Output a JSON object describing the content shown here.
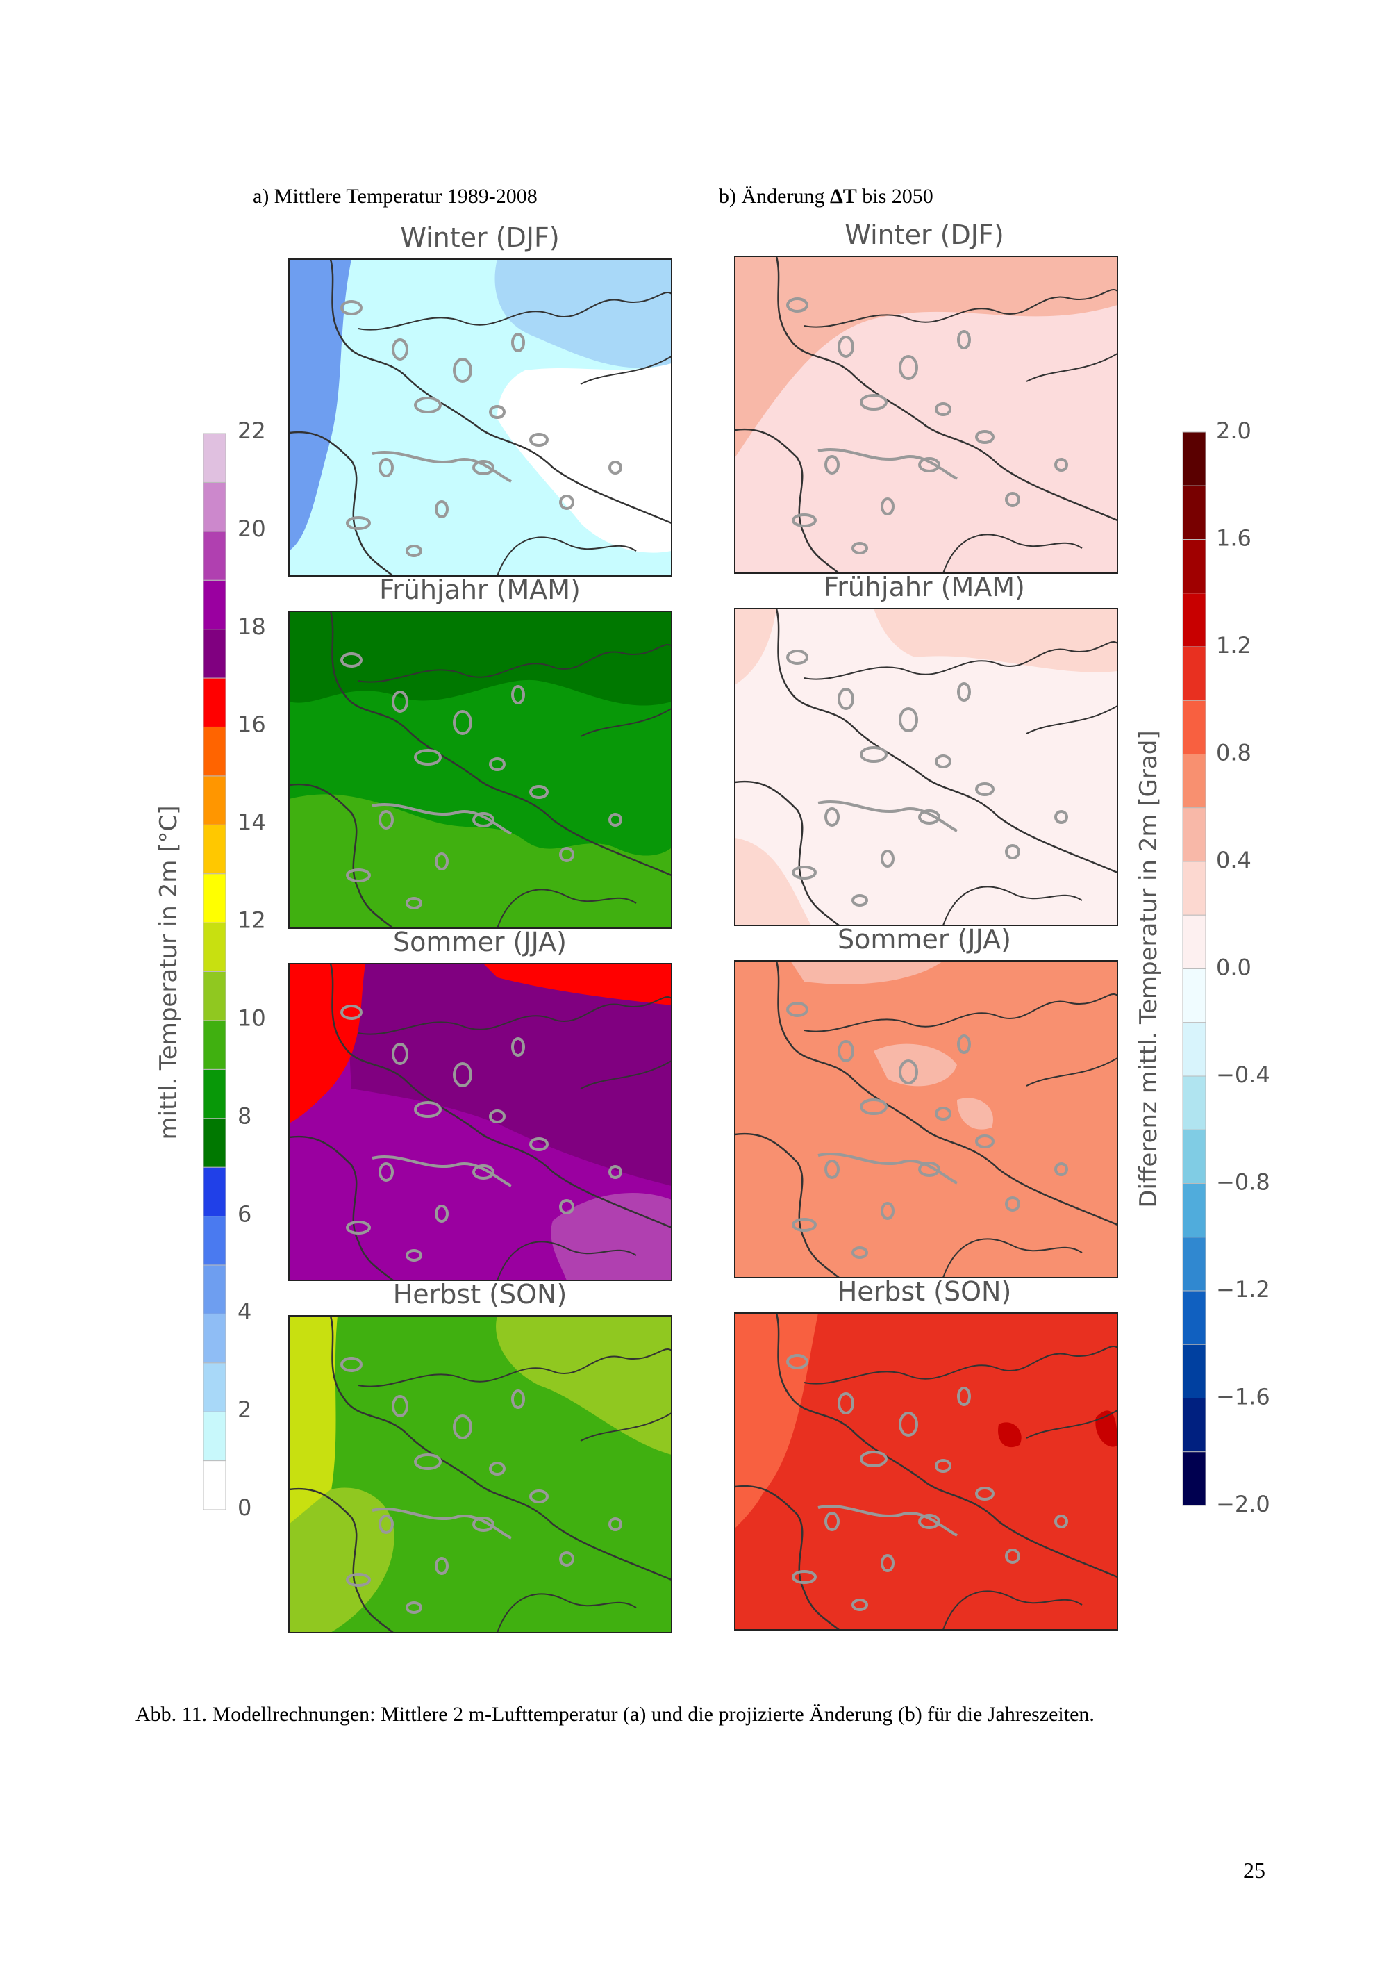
{
  "header": {
    "left_title": "a) Mittlere Temperatur 1989-2008",
    "right_title": {
      "prefix": "b) Änderung ",
      "bold": "ΔT",
      "suffix": " bis 2050"
    }
  },
  "panels": {
    "left": [
      {
        "title": "Winter (DJF)"
      },
      {
        "title": "Frühjahr (MAM)"
      },
      {
        "title": "Sommer (JJA)"
      },
      {
        "title": "Herbst (SON)"
      }
    ],
    "right": [
      {
        "title": "Winter (DJF)"
      },
      {
        "title": "Frühjahr (MAM)"
      },
      {
        "title": "Sommer (JJA)"
      },
      {
        "title": "Herbst (SON)"
      }
    ]
  },
  "colorbars": {
    "left": {
      "label": "mittl. Temperatur in 2m [°C]",
      "ticks": [
        "0",
        "2",
        "4",
        "6",
        "8",
        "10",
        "12",
        "14",
        "16",
        "18",
        "20",
        "22"
      ]
    },
    "right": {
      "label": "Differenz mittl. Temperatur in 2m [Grad]",
      "ticks": [
        "2.0",
        "1.6",
        "1.2",
        "0.8",
        "0.4",
        "0.0",
        "−0.4",
        "−0.8",
        "−1.2",
        "−1.6",
        "−2.0"
      ]
    }
  },
  "caption": "Abb. 11. Modellrechnungen: Mittlere 2 m-Lufttemperatur (a) und die projizierte Änderung (b) für die Jahreszeiten.",
  "page_number": "25"
}
